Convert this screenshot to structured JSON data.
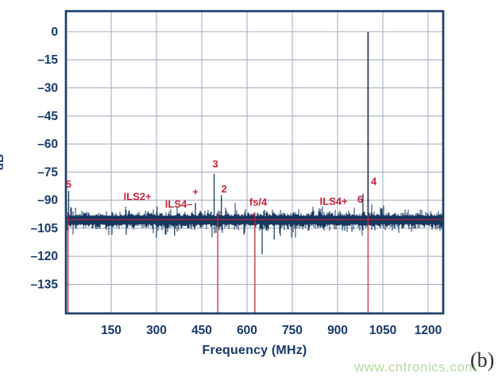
{
  "figure": {
    "watermark": "www.cntronics.com",
    "panel_label": "(b)"
  },
  "colors": {
    "trace_navy": "#16375e",
    "marker_red": "#c9243c",
    "grid": "#a7b1c3",
    "axis_border": "#1c4068",
    "text_navy": "#17396a",
    "annotation_red": "#c9243c",
    "watermark_green": "#b9d8a1",
    "panel_text": "#2e2e2e"
  },
  "chart_data": {
    "type": "line",
    "title": "",
    "xlabel": "Frequency (MHz)",
    "ylabel": "dB",
    "xlim": [
      0,
      1250
    ],
    "ylim": [
      -150.5,
      11
    ],
    "x_ticks": [
      150,
      300,
      450,
      600,
      750,
      900,
      1050,
      1200
    ],
    "y_ticks": [
      0,
      -15,
      -30,
      -45,
      -60,
      -75,
      -90,
      -105,
      -120,
      -135
    ],
    "y_tick_labels": [
      "0",
      "–15",
      "–30",
      "–45",
      "–60",
      "–75",
      "–90",
      "–105",
      "–120",
      "–135"
    ],
    "grid": true,
    "legend": "none",
    "noise_floor_db": -100.4,
    "noise_band_db": [
      -111,
      -89
    ],
    "reference_line_db": -100.4,
    "peaks": [
      {
        "label": "5",
        "f": 9,
        "db": -85
      },
      {
        "label": "3",
        "f": 491,
        "db": -76
      },
      {
        "label": "2",
        "f": 515,
        "db": -87.3
      },
      {
        "label": "+",
        "f": 429,
        "db": -91.5
      },
      {
        "label": "6",
        "f": 984,
        "db": -86.5
      },
      {
        "label": "4",
        "f": 1001,
        "db": -0.2,
        "main": true
      }
    ],
    "dips": [
      {
        "f": 650,
        "db": -119
      },
      {
        "f": 300,
        "db": -110
      },
      {
        "f": 360,
        "db": -109
      },
      {
        "f": 690,
        "db": -111
      },
      {
        "f": 200,
        "db": -108.5
      }
    ],
    "marker_lines": [
      {
        "f": 7,
        "from_db": -96.5
      },
      {
        "f": 503,
        "from_db": -96.5
      },
      {
        "f": 626,
        "from_db": -96.5
      },
      {
        "f": 1001,
        "from_db": 0
      }
    ],
    "annotations": [
      {
        "text": "5",
        "f": 9,
        "db": -81.5
      },
      {
        "text": "ILS2+",
        "f": 237,
        "db": -88
      },
      {
        "text": "ILS4–",
        "f": 374,
        "db": -92
      },
      {
        "text": "+",
        "f": 429,
        "db": -85.5
      },
      {
        "text": "3",
        "f": 495,
        "db": -70.7
      },
      {
        "text": "2",
        "f": 524,
        "db": -84
      },
      {
        "text": "fs/4",
        "f": 637,
        "db": -91
      },
      {
        "text": "ILS4+",
        "f": 887,
        "db": -90.5
      },
      {
        "text": "6",
        "f": 975,
        "db": -89.5
      },
      {
        "text": "4",
        "f": 1020,
        "db": -80
      }
    ]
  }
}
